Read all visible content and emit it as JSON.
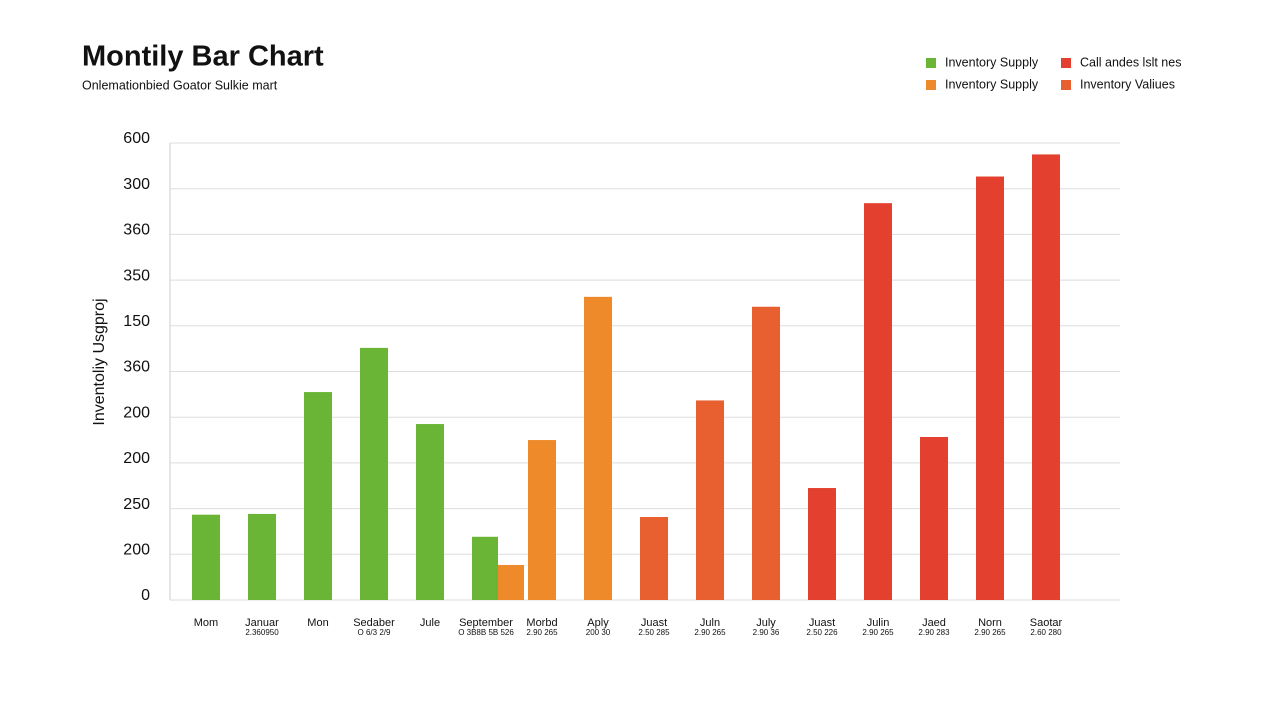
{
  "chart_data": {
    "type": "bar",
    "title": "Montily Bar Chart",
    "subtitle": "Onlemationbied Goator Sulkie mart",
    "y_label": "Inventoliy Usgproj",
    "categories": [
      "Mom",
      "Januar",
      "Mon",
      "Sedaber",
      "Jule",
      "September",
      "Morbd",
      "Aply",
      "Juast",
      "Juln",
      "July",
      "Juast",
      "Julin",
      "Jaed",
      "Norn",
      "Saotar"
    ],
    "sublabels": [
      null,
      "2.360950",
      null,
      "O 6/3 2/9",
      null,
      "O 3B8B 5B 526",
      "2.90 265",
      "200 30",
      "2.50 285",
      "2.90 265",
      "2.90 36",
      "2.50 226",
      "2.90 265",
      "2.90 283",
      "2.90 265",
      "2.60 280"
    ],
    "series": [
      {
        "name": "Inventory Supply",
        "color": "#6ab536",
        "values": [
          112,
          113,
          273,
          331,
          231,
          83,
          null,
          null,
          null,
          null,
          null,
          null,
          null,
          null,
          null,
          null
        ]
      },
      {
        "name": "Call andes lslt nes",
        "color": "#e3402f",
        "values": [
          null,
          null,
          null,
          null,
          null,
          null,
          null,
          null,
          null,
          null,
          null,
          147,
          521,
          214,
          556,
          585
        ]
      },
      {
        "name": "Inventory Supply",
        "color": "#ef8a2a",
        "values": [
          null,
          null,
          null,
          null,
          null,
          46,
          210,
          398,
          null,
          null,
          null,
          null,
          null,
          null,
          null,
          null
        ]
      },
      {
        "name": "Inventory Valiues",
        "color": "#e8602f",
        "values": [
          null,
          null,
          null,
          null,
          null,
          null,
          null,
          null,
          109,
          262,
          385,
          null,
          null,
          null,
          null,
          null
        ]
      }
    ],
    "ylim": [
      0,
      600
    ],
    "yticks": [
      0,
      {
        "value": 60,
        "label": "200"
      },
      {
        "value": 120,
        "label": "250"
      },
      {
        "value": 180,
        "label": "200"
      },
      {
        "value": 240,
        "label": "200"
      },
      {
        "value": 300,
        "label": "360"
      },
      {
        "value": 360,
        "label": "150"
      },
      {
        "value": 420,
        "label": "350"
      },
      {
        "value": 480,
        "label": "360"
      },
      {
        "value": 540,
        "label": "300"
      },
      600
    ],
    "grid": true
  }
}
